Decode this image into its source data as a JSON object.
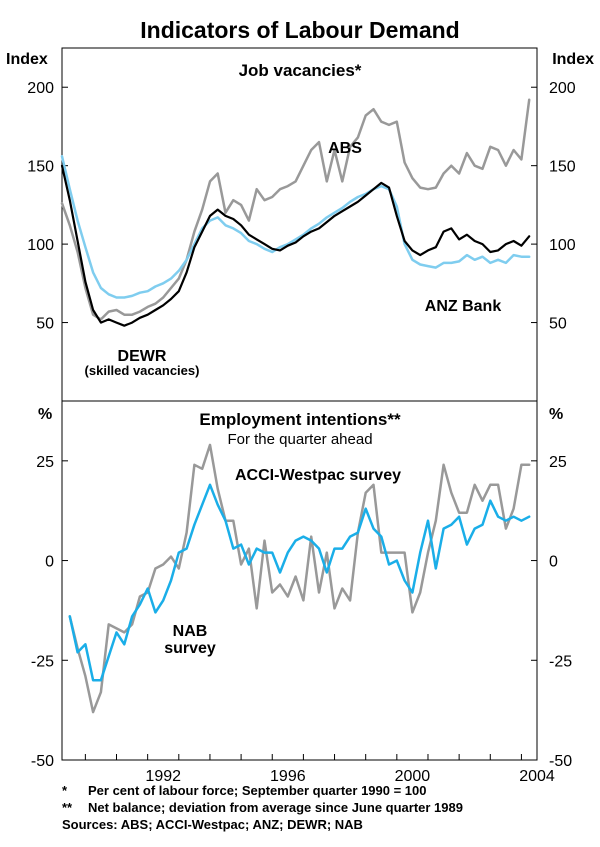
{
  "figure": {
    "title": "Indicators of Labour Demand",
    "footnotes": [
      {
        "marker": "*",
        "text": "Per cent of labour force; September quarter 1990 = 100"
      },
      {
        "marker": "**",
        "text": "Net balance; deviation from average since June quarter 1989"
      }
    ],
    "sources": "Sources: ABS; ACCI-Westpac; ANZ; DEWR; NAB"
  },
  "colors": {
    "abs": "#999999",
    "anz": "#7fcdef",
    "dewr": "#000000",
    "acci": "#999999",
    "nab": "#1aaee8",
    "frame": "#000000"
  },
  "chart_data": [
    {
      "type": "line",
      "title": "Job vacancies*",
      "ylabel_left": "Index",
      "ylabel_right": "Index",
      "ylim": [
        0,
        225
      ],
      "yticks": [
        50,
        100,
        150,
        200
      ],
      "ytick_labels": [
        "50",
        "100",
        "150",
        "200"
      ],
      "xlim": [
        1989.25,
        2004.5
      ],
      "series": [
        {
          "name": "ABS",
          "label": "ABS",
          "x": [
            1989.25,
            1989.5,
            1989.75,
            1990.0,
            1990.25,
            1990.5,
            1990.75,
            1991.0,
            1991.25,
            1991.5,
            1991.75,
            1992.0,
            1992.25,
            1992.5,
            1992.75,
            1993.0,
            1993.25,
            1993.5,
            1993.75,
            1994.0,
            1994.25,
            1994.5,
            1994.75,
            1995.0,
            1995.25,
            1995.5,
            1995.75,
            1996.0,
            1996.25,
            1996.5,
            1996.75,
            1997.0,
            1997.25,
            1997.5,
            1997.75,
            1998.0,
            1998.25,
            1998.5,
            1998.75,
            1999.0,
            1999.25,
            1999.5,
            1999.75,
            2000.0,
            2000.25,
            2000.5,
            2000.75,
            2001.0,
            2001.25,
            2001.5,
            2001.75,
            2002.0,
            2002.25,
            2002.5,
            2002.75,
            2003.0,
            2003.25,
            2003.5,
            2003.75,
            2004.0,
            2004.25
          ],
          "values": [
            126,
            112,
            95,
            72,
            55,
            52,
            57,
            58,
            55,
            55,
            57,
            60,
            62,
            66,
            72,
            78,
            90,
            108,
            122,
            140,
            145,
            120,
            128,
            125,
            115,
            135,
            128,
            130,
            135,
            137,
            140,
            150,
            160,
            165,
            140,
            160,
            140,
            162,
            168,
            182,
            186,
            178,
            176,
            178,
            152,
            142,
            136,
            135,
            136,
            145,
            150,
            145,
            158,
            150,
            148,
            162,
            160,
            150,
            160,
            154,
            192
          ]
        },
        {
          "name": "ANZ Bank",
          "label": "ANZ Bank",
          "x": [
            1989.25,
            1989.5,
            1989.75,
            1990.0,
            1990.25,
            1990.5,
            1990.75,
            1991.0,
            1991.25,
            1991.5,
            1991.75,
            1992.0,
            1992.25,
            1992.5,
            1992.75,
            1993.0,
            1993.25,
            1993.5,
            1993.75,
            1994.0,
            1994.25,
            1994.5,
            1994.75,
            1995.0,
            1995.25,
            1995.5,
            1995.75,
            1996.0,
            1996.25,
            1996.5,
            1996.75,
            1997.0,
            1997.25,
            1997.5,
            1997.75,
            1998.0,
            1998.25,
            1998.5,
            1998.75,
            1999.0,
            1999.25,
            1999.5,
            1999.75,
            2000.0,
            2000.25,
            2000.5,
            2000.75,
            2001.0,
            2001.25,
            2001.5,
            2001.75,
            2002.0,
            2002.25,
            2002.5,
            2002.75,
            2003.0,
            2003.25,
            2003.5,
            2003.75,
            2004.0,
            2004.25
          ],
          "values": [
            156,
            135,
            115,
            98,
            82,
            72,
            68,
            66,
            66,
            67,
            69,
            70,
            73,
            75,
            78,
            83,
            90,
            100,
            110,
            115,
            117,
            112,
            110,
            107,
            102,
            100,
            97,
            95,
            98,
            100,
            103,
            106,
            110,
            113,
            117,
            120,
            123,
            127,
            130,
            132,
            135,
            137,
            135,
            124,
            100,
            90,
            87,
            86,
            85,
            88,
            88,
            89,
            93,
            90,
            92,
            88,
            90,
            88,
            93,
            92,
            92
          ]
        },
        {
          "name": "DEWR",
          "label": "DEWR",
          "sublabel": "(skilled vacancies)",
          "x": [
            1989.25,
            1989.5,
            1989.75,
            1990.0,
            1990.25,
            1990.5,
            1990.75,
            1991.0,
            1991.25,
            1991.5,
            1991.75,
            1992.0,
            1992.25,
            1992.5,
            1992.75,
            1993.0,
            1993.25,
            1993.5,
            1993.75,
            1994.0,
            1994.25,
            1994.5,
            1994.75,
            1995.0,
            1995.25,
            1995.5,
            1995.75,
            1996.0,
            1996.25,
            1996.5,
            1996.75,
            1997.0,
            1997.25,
            1997.5,
            1997.75,
            1998.0,
            1998.25,
            1998.5,
            1998.75,
            1999.0,
            1999.25,
            1999.5,
            1999.75,
            2000.0,
            2000.25,
            2000.5,
            2000.75,
            2001.0,
            2001.25,
            2001.5,
            2001.75,
            2002.0,
            2002.25,
            2002.5,
            2002.75,
            2003.0,
            2003.25,
            2003.5,
            2003.75,
            2004.0,
            2004.25
          ],
          "values": [
            150,
            128,
            102,
            76,
            58,
            50,
            52,
            50,
            48,
            50,
            53,
            55,
            58,
            61,
            65,
            70,
            82,
            98,
            108,
            118,
            122,
            118,
            116,
            112,
            106,
            103,
            100,
            97,
            96,
            99,
            101,
            105,
            108,
            110,
            114,
            118,
            121,
            124,
            127,
            131,
            135,
            139,
            136,
            118,
            102,
            96,
            93,
            96,
            98,
            108,
            110,
            103,
            106,
            102,
            100,
            95,
            96,
            100,
            102,
            99,
            105
          ]
        }
      ]
    },
    {
      "type": "line",
      "title": "Employment intentions**",
      "subtitle": "For the quarter ahead",
      "ylabel_left": "%",
      "ylabel_right": "%",
      "ylim": [
        -50,
        40
      ],
      "yticks": [
        -50,
        -25,
        0,
        25
      ],
      "ytick_labels": [
        "-50",
        "-25",
        "0",
        "25"
      ],
      "xlim": [
        1989.25,
        2004.5
      ],
      "xticks": [
        1992,
        1996,
        2000,
        2004
      ],
      "xtick_labels": [
        "1992",
        "1996",
        "2000",
        "2004"
      ],
      "series": [
        {
          "name": "ACCI-Westpac survey",
          "label": "ACCI-Westpac survey",
          "x": [
            1989.5,
            1989.75,
            1990.0,
            1990.25,
            1990.5,
            1990.75,
            1991.0,
            1991.25,
            1991.5,
            1991.75,
            1992.0,
            1992.25,
            1992.5,
            1992.75,
            1993.0,
            1993.25,
            1993.5,
            1993.75,
            1994.0,
            1994.25,
            1994.5,
            1994.75,
            1995.0,
            1995.25,
            1995.5,
            1995.75,
            1996.0,
            1996.25,
            1996.5,
            1996.75,
            1997.0,
            1997.25,
            1997.5,
            1997.75,
            1998.0,
            1998.25,
            1998.5,
            1998.75,
            1999.0,
            1999.25,
            1999.5,
            1999.75,
            2000.0,
            2000.25,
            2000.5,
            2000.75,
            2001.0,
            2001.25,
            2001.5,
            2001.75,
            2002.0,
            2002.25,
            2002.5,
            2002.75,
            2003.0,
            2003.25,
            2003.5,
            2003.75,
            2004.0,
            2004.25
          ],
          "values": [
            -14,
            -22,
            -29,
            -38,
            -33,
            -16,
            -17,
            -18,
            -16,
            -9,
            -8,
            -2,
            -1,
            1,
            -2,
            7,
            24,
            23,
            29,
            18,
            10,
            10,
            -1,
            3,
            -12,
            5,
            -8,
            -6,
            -9,
            -4,
            -10,
            6,
            -8,
            2,
            -12,
            -7,
            -10,
            7,
            17,
            19,
            2,
            2,
            2,
            2,
            -13,
            -8,
            2,
            10,
            24,
            17,
            12,
            12,
            19,
            15,
            19,
            19,
            8,
            13,
            24,
            24
          ]
        },
        {
          "name": "NAB survey",
          "label": "NAB",
          "sublabel": "survey",
          "x": [
            1989.5,
            1989.75,
            1990.0,
            1990.25,
            1990.5,
            1990.75,
            1991.0,
            1991.25,
            1991.5,
            1991.75,
            1992.0,
            1992.25,
            1992.5,
            1992.75,
            1993.0,
            1993.25,
            1993.5,
            1993.75,
            1994.0,
            1994.25,
            1994.5,
            1994.75,
            1995.0,
            1995.25,
            1995.5,
            1995.75,
            1996.0,
            1996.25,
            1996.5,
            1996.75,
            1997.0,
            1997.25,
            1997.5,
            1997.75,
            1998.0,
            1998.25,
            1998.5,
            1998.75,
            1999.0,
            1999.25,
            1999.5,
            1999.75,
            2000.0,
            2000.25,
            2000.5,
            2000.75,
            2001.0,
            2001.25,
            2001.5,
            2001.75,
            2002.0,
            2002.25,
            2002.5,
            2002.75,
            2003.0,
            2003.25,
            2003.5,
            2003.75,
            2004.0,
            2004.25
          ],
          "values": [
            -14,
            -23,
            -21,
            -30,
            -30,
            -24,
            -18,
            -21,
            -14,
            -11,
            -7,
            -13,
            -10,
            -5,
            2,
            3,
            9,
            14,
            19,
            14,
            10,
            3,
            4,
            -1,
            3,
            2,
            2,
            -3,
            2,
            5,
            6,
            5,
            3,
            -3,
            3,
            3,
            6,
            7,
            13,
            8,
            6,
            -1,
            0,
            -5,
            -8,
            2,
            10,
            -2,
            8,
            9,
            11,
            4,
            8,
            9,
            15,
            11,
            10,
            11,
            10,
            11
          ]
        }
      ]
    }
  ]
}
